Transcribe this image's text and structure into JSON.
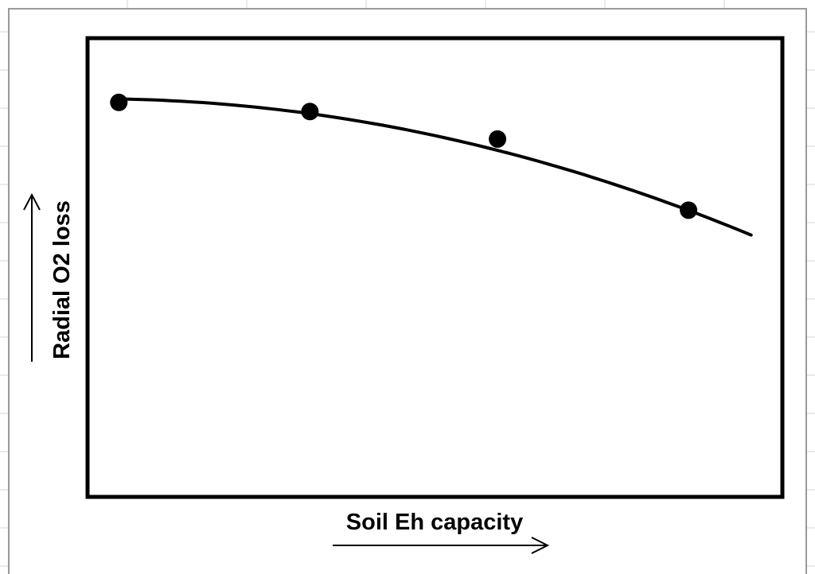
{
  "chart_data": {
    "type": "scatter",
    "title": "",
    "xlabel": "Soil Eh capacity",
    "ylabel": "Radial O2 loss",
    "xlim": [
      0,
      10
    ],
    "ylim": [
      0,
      10
    ],
    "grid": false,
    "legend": "none",
    "series": [
      {
        "points": [
          {
            "x": 0.45,
            "y": 8.6
          },
          {
            "x": 3.2,
            "y": 8.4
          },
          {
            "x": 5.9,
            "y": 7.8
          },
          {
            "x": 8.65,
            "y": 6.25
          }
        ],
        "marker": "filled-circle"
      }
    ],
    "trendline": {
      "type": "polynomial",
      "x_range": [
        0.45,
        9.55
      ],
      "coefficients": [
        8.68,
        0.004,
        -0.033
      ]
    },
    "colors": {
      "marker": "#000000",
      "line": "#000000",
      "plot_border": "#000000",
      "background": "#ffffff"
    }
  }
}
